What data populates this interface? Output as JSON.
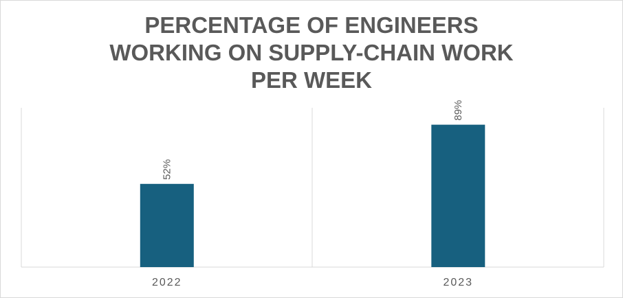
{
  "chart_data": {
    "type": "bar",
    "title_lines": [
      "PERCENTAGE OF ENGINEERS",
      "WORKING ON SUPPLY-CHAIN WORK",
      "PER WEEK"
    ],
    "categories": [
      "2022",
      "2023"
    ],
    "values": [
      52,
      89
    ],
    "data_labels": [
      "52%",
      "89%"
    ],
    "ylim": [
      0,
      100
    ],
    "xlabel": "",
    "ylabel": "",
    "grid": "vertical-category-separators",
    "legend": "none",
    "bar_color": "#17607f"
  }
}
